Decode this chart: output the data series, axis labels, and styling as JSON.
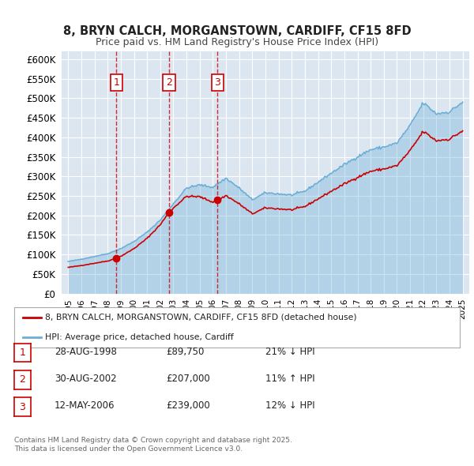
{
  "title_line1": "8, BRYN CALCH, MORGANSTOWN, CARDIFF, CF15 8FD",
  "title_line2": "Price paid vs. HM Land Registry's House Price Index (HPI)",
  "ylabel": "",
  "background_color": "#ffffff",
  "plot_bg_color": "#dce6f1",
  "grid_color": "#ffffff",
  "hpi_color": "#6baed6",
  "sale_color": "#cc0000",
  "sale_marker_color": "#cc0000",
  "vline_color": "#cc0000",
  "annotation_box_color": "#cc0000",
  "ylim": [
    0,
    620000
  ],
  "yticks": [
    0,
    50000,
    100000,
    150000,
    200000,
    250000,
    300000,
    350000,
    400000,
    450000,
    500000,
    550000,
    600000
  ],
  "sales": [
    {
      "date_num": 1998.66,
      "price": 89750,
      "label": "1"
    },
    {
      "date_num": 2002.66,
      "price": 207000,
      "label": "2"
    },
    {
      "date_num": 2006.36,
      "price": 239000,
      "label": "3"
    }
  ],
  "table_rows": [
    {
      "num": "1",
      "date": "28-AUG-1998",
      "price": "£89,750",
      "pct": "21% ↓ HPI"
    },
    {
      "num": "2",
      "date": "30-AUG-2002",
      "price": "£207,000",
      "pct": "11% ↑ HPI"
    },
    {
      "num": "3",
      "date": "12-MAY-2006",
      "price": "£239,000",
      "pct": "12% ↓ HPI"
    }
  ],
  "legend_entries": [
    {
      "label": "8, BRYN CALCH, MORGANSTOWN, CARDIFF, CF15 8FD (detached house)",
      "color": "#cc0000"
    },
    {
      "label": "HPI: Average price, detached house, Cardiff",
      "color": "#6baed6"
    }
  ],
  "footnote": "Contains HM Land Registry data © Crown copyright and database right 2025.\nThis data is licensed under the Open Government Licence v3.0.",
  "xlim_left": 1994.5,
  "xlim_right": 2025.5,
  "xticks": [
    1995,
    1996,
    1997,
    1998,
    1999,
    2000,
    2001,
    2002,
    2003,
    2004,
    2005,
    2006,
    2007,
    2008,
    2009,
    2010,
    2011,
    2012,
    2013,
    2014,
    2015,
    2016,
    2017,
    2018,
    2019,
    2020,
    2021,
    2022,
    2023,
    2024,
    2025
  ]
}
